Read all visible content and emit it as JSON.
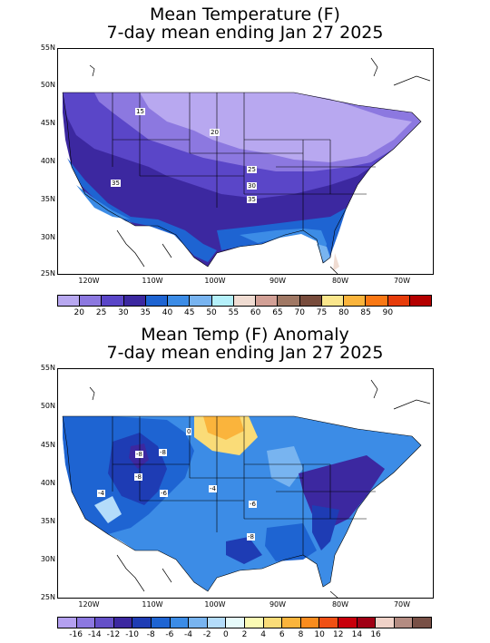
{
  "top_map": {
    "title_line1": "Mean Temperature (F)",
    "title_line2": "7-day mean ending Jan 27 2025",
    "lat_ticks": [
      "55N",
      "50N",
      "45N",
      "40N",
      "35N",
      "30N",
      "25N"
    ],
    "lon_ticks": [
      "120W",
      "110W",
      "100W",
      "90W",
      "80W",
      "70W"
    ],
    "contour_labels": [
      "15",
      "20",
      "25",
      "30",
      "35",
      "35"
    ],
    "colorbar": {
      "colors": [
        "#b8a8f0",
        "#8c78e0",
        "#5a46c8",
        "#3c28a0",
        "#1e64d2",
        "#3c8ce6",
        "#78b4f0",
        "#b4f0fa",
        "#f0dcd2",
        "#d2a096",
        "#a07864",
        "#784c3c",
        "#fae68c",
        "#fab43c",
        "#fa7814",
        "#e63c0a",
        "#b40000"
      ],
      "labels": [
        "20",
        "25",
        "30",
        "35",
        "40",
        "45",
        "50",
        "55",
        "60",
        "65",
        "70",
        "75",
        "80",
        "85",
        "90"
      ]
    }
  },
  "bottom_map": {
    "title_line1": "Mean Temp (F) Anomaly",
    "title_line2": "7-day mean ending Jan 27 2025",
    "lat_ticks": [
      "55N",
      "50N",
      "45N",
      "40N",
      "35N",
      "30N",
      "25N"
    ],
    "lon_ticks": [
      "120W",
      "110W",
      "100W",
      "90W",
      "80W",
      "70W"
    ],
    "contour_labels": [
      "0",
      "-8",
      "-8",
      "-8",
      "-6",
      "-4",
      "-4",
      "-6",
      "-8"
    ],
    "colorbar": {
      "colors": [
        "#b4a0f0",
        "#8c78e0",
        "#6450c8",
        "#3c28a0",
        "#1e3cb4",
        "#1e64d2",
        "#3c8ce6",
        "#78b4f0",
        "#b4dcfa",
        "#e6fafa",
        "#fafab4",
        "#fadc78",
        "#fab43c",
        "#fa8c1e",
        "#f05014",
        "#c8000a",
        "#a00014",
        "#f0d2c8",
        "#b48c82",
        "#785046"
      ],
      "labels": [
        "-16",
        "-14",
        "-12",
        "-10",
        "-8",
        "-6",
        "-4",
        "-2",
        "0",
        "2",
        "4",
        "6",
        "8",
        "10",
        "12",
        "14",
        "16"
      ]
    }
  }
}
